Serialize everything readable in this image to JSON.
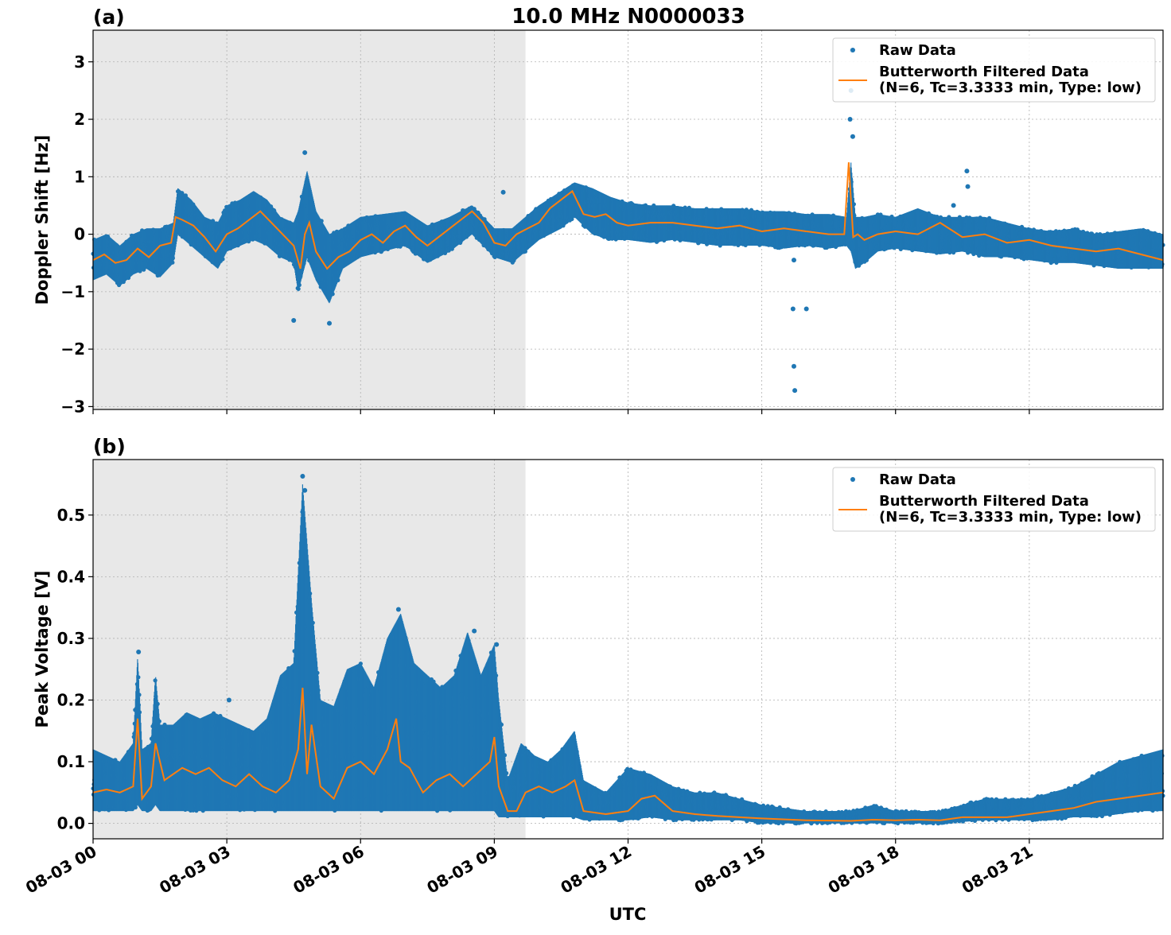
{
  "figure": {
    "title": "10.0 MHz N0000033",
    "xlabel": "UTC",
    "x_tick_labels": [
      "08-03 00",
      "08-03 03",
      "08-03 06",
      "08-03 09",
      "08-03 12",
      "08-03 15",
      "08-03 18",
      "08-03 21"
    ]
  },
  "legend": {
    "raw_label": "Raw Data",
    "filtered_label_line1": "Butterworth Filtered Data",
    "filtered_label_line2": "(N=6, Tc=3.3333 min, Type: low)"
  },
  "colors": {
    "raw": "#1f77b4",
    "filtered": "#ff7f0e",
    "night_shade": "#e8e8e8"
  },
  "chart_data": [
    {
      "type": "scatter",
      "panel_label": "(a)",
      "ylabel": "Doppler Shift [Hz]",
      "xlim_hours": [
        0,
        24
      ],
      "ylim": [
        -3.05,
        3.55
      ],
      "yticks": [
        -3,
        -2,
        -1,
        0,
        1,
        2,
        3
      ],
      "y_tick_labels": [
        "−3",
        "−2",
        "−1",
        "0",
        "1",
        "2",
        "3"
      ],
      "grid": true,
      "legend_position": "top-right",
      "shaded_region_hours": [
        0,
        9.7
      ],
      "x_unit": "hours since 08-03 00 UTC",
      "series": [
        {
          "name": "Raw Data",
          "envelope_x": [
            0,
            0.3,
            0.6,
            0.9,
            1.2,
            1.5,
            1.8,
            1.9,
            2.2,
            2.5,
            2.8,
            3.0,
            3.3,
            3.6,
            3.9,
            4.2,
            4.5,
            4.6,
            4.8,
            5.0,
            5.3,
            5.6,
            6.0,
            6.5,
            7.0,
            7.5,
            8.0,
            8.5,
            9.0,
            9.4,
            9.7,
            10.0,
            10.5,
            10.8,
            11.2,
            11.6,
            12.0,
            12.5,
            13.0,
            13.5,
            14.0,
            14.5,
            15.0,
            15.5,
            16.0,
            16.5,
            16.9,
            17.0,
            17.1,
            17.3,
            17.6,
            18.0,
            18.5,
            19.0,
            19.5,
            20.0,
            20.5,
            21.0,
            21.5,
            22.0,
            22.5,
            23.0,
            23.5,
            24.0
          ],
          "envelope_low": [
            -0.8,
            -0.7,
            -0.9,
            -0.7,
            -0.6,
            -0.75,
            -0.5,
            0.0,
            -0.2,
            -0.4,
            -0.6,
            -0.3,
            -0.2,
            -0.1,
            -0.2,
            -0.4,
            -0.5,
            -1.0,
            -0.4,
            -0.8,
            -1.2,
            -0.6,
            -0.4,
            -0.3,
            -0.2,
            -0.5,
            -0.3,
            0.0,
            -0.4,
            -0.5,
            -0.3,
            -0.1,
            0.1,
            0.3,
            0.0,
            -0.1,
            -0.1,
            -0.15,
            -0.1,
            -0.15,
            -0.2,
            -0.2,
            -0.2,
            -0.25,
            -0.2,
            -0.25,
            -0.2,
            -0.3,
            -0.6,
            -0.5,
            -0.3,
            -0.25,
            -0.3,
            -0.35,
            -0.3,
            -0.4,
            -0.4,
            -0.45,
            -0.5,
            -0.5,
            -0.55,
            -0.6,
            -0.6,
            -0.6
          ],
          "envelope_high": [
            -0.1,
            0.0,
            -0.2,
            0.0,
            0.1,
            0.1,
            0.2,
            0.8,
            0.6,
            0.3,
            0.2,
            0.5,
            0.6,
            0.75,
            0.6,
            0.3,
            0.2,
            0.4,
            1.1,
            0.4,
            0.0,
            0.1,
            0.3,
            0.35,
            0.4,
            0.15,
            0.3,
            0.5,
            0.1,
            0.1,
            0.3,
            0.5,
            0.75,
            0.9,
            0.8,
            0.65,
            0.55,
            0.5,
            0.5,
            0.45,
            0.45,
            0.45,
            0.4,
            0.4,
            0.35,
            0.35,
            0.3,
            1.25,
            0.3,
            0.3,
            0.35,
            0.3,
            0.45,
            0.3,
            0.3,
            0.3,
            0.2,
            0.1,
            0.05,
            0.1,
            0.0,
            0.05,
            0.1,
            0.0
          ],
          "outliers": [
            {
              "x": 4.75,
              "y": 1.42
            },
            {
              "x": 4.5,
              "y": -1.5
            },
            {
              "x": 5.3,
              "y": -1.55
            },
            {
              "x": 9.2,
              "y": 0.73
            },
            {
              "x": 15.7,
              "y": -1.3
            },
            {
              "x": 15.72,
              "y": -2.3
            },
            {
              "x": 15.74,
              "y": -2.72
            },
            {
              "x": 16.0,
              "y": -1.3
            },
            {
              "x": 15.72,
              "y": -0.45
            },
            {
              "x": 17.0,
              "y": 2.5
            },
            {
              "x": 17.02,
              "y": 3.2
            },
            {
              "x": 17.04,
              "y": 1.7
            },
            {
              "x": 16.98,
              "y": 2.0
            },
            {
              "x": 19.3,
              "y": 0.5
            },
            {
              "x": 19.6,
              "y": 1.1
            },
            {
              "x": 19.62,
              "y": 0.83
            }
          ]
        },
        {
          "name": "Butterworth Filtered Data (N=6, Tc=3.3333 min, Type: low)",
          "x": [
            0,
            0.25,
            0.5,
            0.75,
            1.0,
            1.25,
            1.5,
            1.75,
            1.85,
            2.0,
            2.25,
            2.5,
            2.75,
            3.0,
            3.25,
            3.5,
            3.75,
            4.0,
            4.25,
            4.5,
            4.65,
            4.75,
            4.85,
            5.0,
            5.25,
            5.5,
            5.75,
            6.0,
            6.25,
            6.5,
            6.75,
            7.0,
            7.25,
            7.5,
            7.75,
            8.0,
            8.25,
            8.5,
            8.75,
            9.0,
            9.25,
            9.5,
            9.75,
            10.0,
            10.25,
            10.5,
            10.75,
            11.0,
            11.25,
            11.5,
            11.75,
            12.0,
            12.5,
            13.0,
            13.5,
            14.0,
            14.5,
            15.0,
            15.5,
            16.0,
            16.5,
            16.85,
            16.95,
            17.05,
            17.15,
            17.3,
            17.6,
            18.0,
            18.5,
            19.0,
            19.5,
            20.0,
            20.5,
            21.0,
            21.5,
            22.0,
            22.5,
            23.0,
            23.5,
            24.0
          ],
          "y": [
            -0.45,
            -0.35,
            -0.5,
            -0.45,
            -0.25,
            -0.4,
            -0.2,
            -0.15,
            0.3,
            0.25,
            0.15,
            -0.05,
            -0.3,
            0.0,
            0.1,
            0.25,
            0.4,
            0.2,
            0.0,
            -0.2,
            -0.6,
            0.0,
            0.2,
            -0.3,
            -0.6,
            -0.4,
            -0.3,
            -0.1,
            0.0,
            -0.15,
            0.05,
            0.15,
            -0.05,
            -0.2,
            -0.05,
            0.1,
            0.25,
            0.4,
            0.2,
            -0.15,
            -0.2,
            0.0,
            0.1,
            0.2,
            0.45,
            0.6,
            0.75,
            0.35,
            0.3,
            0.35,
            0.2,
            0.15,
            0.2,
            0.2,
            0.15,
            0.1,
            0.15,
            0.05,
            0.1,
            0.05,
            0.0,
            0.0,
            1.25,
            -0.05,
            0.0,
            -0.1,
            0.0,
            0.05,
            0.0,
            0.2,
            -0.05,
            0.0,
            -0.15,
            -0.1,
            -0.2,
            -0.25,
            -0.3,
            -0.25,
            -0.35,
            -0.45
          ]
        }
      ]
    },
    {
      "type": "scatter",
      "panel_label": "(b)",
      "ylabel": "Peak Voltage [V]",
      "xlim_hours": [
        0,
        24
      ],
      "ylim": [
        -0.025,
        0.59
      ],
      "yticks": [
        0.0,
        0.1,
        0.2,
        0.3,
        0.4,
        0.5
      ],
      "y_tick_labels": [
        "0.0",
        "0.1",
        "0.2",
        "0.3",
        "0.4",
        "0.5"
      ],
      "grid": true,
      "legend_position": "top-right",
      "shaded_region_hours": [
        0,
        9.7
      ],
      "x_unit": "hours since 08-03 00 UTC",
      "series": [
        {
          "name": "Raw Data",
          "envelope_x": [
            0,
            0.3,
            0.6,
            0.9,
            1.0,
            1.1,
            1.3,
            1.4,
            1.5,
            1.8,
            2.1,
            2.4,
            2.7,
            3.0,
            3.3,
            3.6,
            3.9,
            4.2,
            4.5,
            4.7,
            4.9,
            5.1,
            5.4,
            5.7,
            6.0,
            6.3,
            6.6,
            6.9,
            7.2,
            7.5,
            7.8,
            8.1,
            8.4,
            8.7,
            9.0,
            9.1,
            9.3,
            9.6,
            9.9,
            10.2,
            10.5,
            10.8,
            11.0,
            11.5,
            12.0,
            12.5,
            13.0,
            13.5,
            14.0,
            14.5,
            15.0,
            16.0,
            17.0,
            17.5,
            18.0,
            19.0,
            20.0,
            21.0,
            21.5,
            22.0,
            22.5,
            23.0,
            23.5,
            24.0
          ],
          "envelope_low": [
            0.02,
            0.02,
            0.02,
            0.02,
            0.03,
            0.02,
            0.02,
            0.03,
            0.02,
            0.02,
            0.02,
            0.02,
            0.02,
            0.02,
            0.02,
            0.02,
            0.02,
            0.02,
            0.02,
            0.02,
            0.02,
            0.02,
            0.02,
            0.02,
            0.02,
            0.02,
            0.02,
            0.02,
            0.02,
            0.02,
            0.02,
            0.02,
            0.02,
            0.02,
            0.02,
            0.01,
            0.01,
            0.01,
            0.01,
            0.01,
            0.01,
            0.01,
            0.005,
            0.005,
            0.005,
            0.01,
            0.005,
            0.005,
            0.005,
            0.005,
            0.0,
            0.0,
            0.0,
            0.0,
            0.0,
            0.0,
            0.005,
            0.005,
            0.005,
            0.01,
            0.01,
            0.015,
            0.02,
            0.02
          ],
          "envelope_high": [
            0.12,
            0.11,
            0.1,
            0.13,
            0.27,
            0.12,
            0.13,
            0.24,
            0.16,
            0.16,
            0.18,
            0.17,
            0.18,
            0.17,
            0.16,
            0.15,
            0.17,
            0.24,
            0.26,
            0.55,
            0.36,
            0.2,
            0.19,
            0.25,
            0.26,
            0.22,
            0.3,
            0.34,
            0.26,
            0.24,
            0.22,
            0.24,
            0.31,
            0.24,
            0.29,
            0.2,
            0.07,
            0.13,
            0.11,
            0.1,
            0.12,
            0.15,
            0.07,
            0.05,
            0.09,
            0.08,
            0.06,
            0.05,
            0.05,
            0.04,
            0.03,
            0.02,
            0.02,
            0.03,
            0.02,
            0.02,
            0.04,
            0.04,
            0.05,
            0.06,
            0.08,
            0.1,
            0.11,
            0.12
          ],
          "outliers": [
            {
              "x": 4.7,
              "y": 0.563
            },
            {
              "x": 4.7,
              "y": 0.505
            },
            {
              "x": 4.75,
              "y": 0.54
            },
            {
              "x": 1.02,
              "y": 0.278
            },
            {
              "x": 6.85,
              "y": 0.347
            },
            {
              "x": 8.55,
              "y": 0.312
            },
            {
              "x": 9.05,
              "y": 0.29
            },
            {
              "x": 3.05,
              "y": 0.2
            },
            {
              "x": 3.8,
              "y": 0.15
            }
          ]
        },
        {
          "name": "Butterworth Filtered Data (N=6, Tc=3.3333 min, Type: low)",
          "x": [
            0,
            0.3,
            0.6,
            0.9,
            1.0,
            1.1,
            1.3,
            1.4,
            1.6,
            2.0,
            2.3,
            2.6,
            2.9,
            3.2,
            3.5,
            3.8,
            4.1,
            4.4,
            4.6,
            4.7,
            4.8,
            4.9,
            5.1,
            5.4,
            5.7,
            6.0,
            6.3,
            6.6,
            6.8,
            6.9,
            7.1,
            7.4,
            7.7,
            8.0,
            8.3,
            8.6,
            8.9,
            9.0,
            9.1,
            9.3,
            9.5,
            9.7,
            10.0,
            10.3,
            10.6,
            10.8,
            11.0,
            11.5,
            12.0,
            12.3,
            12.6,
            13.0,
            13.5,
            14.0,
            14.5,
            15.0,
            16.0,
            17.0,
            17.5,
            18.0,
            18.5,
            19.0,
            19.5,
            20.0,
            20.5,
            21.0,
            21.5,
            22.0,
            22.5,
            23.0,
            23.5,
            24.0
          ],
          "y": [
            0.05,
            0.055,
            0.05,
            0.06,
            0.17,
            0.04,
            0.06,
            0.13,
            0.07,
            0.09,
            0.08,
            0.09,
            0.07,
            0.06,
            0.08,
            0.06,
            0.05,
            0.07,
            0.12,
            0.22,
            0.08,
            0.16,
            0.06,
            0.04,
            0.09,
            0.1,
            0.08,
            0.12,
            0.17,
            0.1,
            0.09,
            0.05,
            0.07,
            0.08,
            0.06,
            0.08,
            0.1,
            0.14,
            0.06,
            0.02,
            0.02,
            0.05,
            0.06,
            0.05,
            0.06,
            0.07,
            0.02,
            0.015,
            0.02,
            0.04,
            0.045,
            0.02,
            0.015,
            0.012,
            0.01,
            0.008,
            0.005,
            0.004,
            0.006,
            0.005,
            0.006,
            0.005,
            0.01,
            0.01,
            0.01,
            0.015,
            0.02,
            0.025,
            0.035,
            0.04,
            0.045,
            0.05
          ]
        }
      ]
    }
  ]
}
